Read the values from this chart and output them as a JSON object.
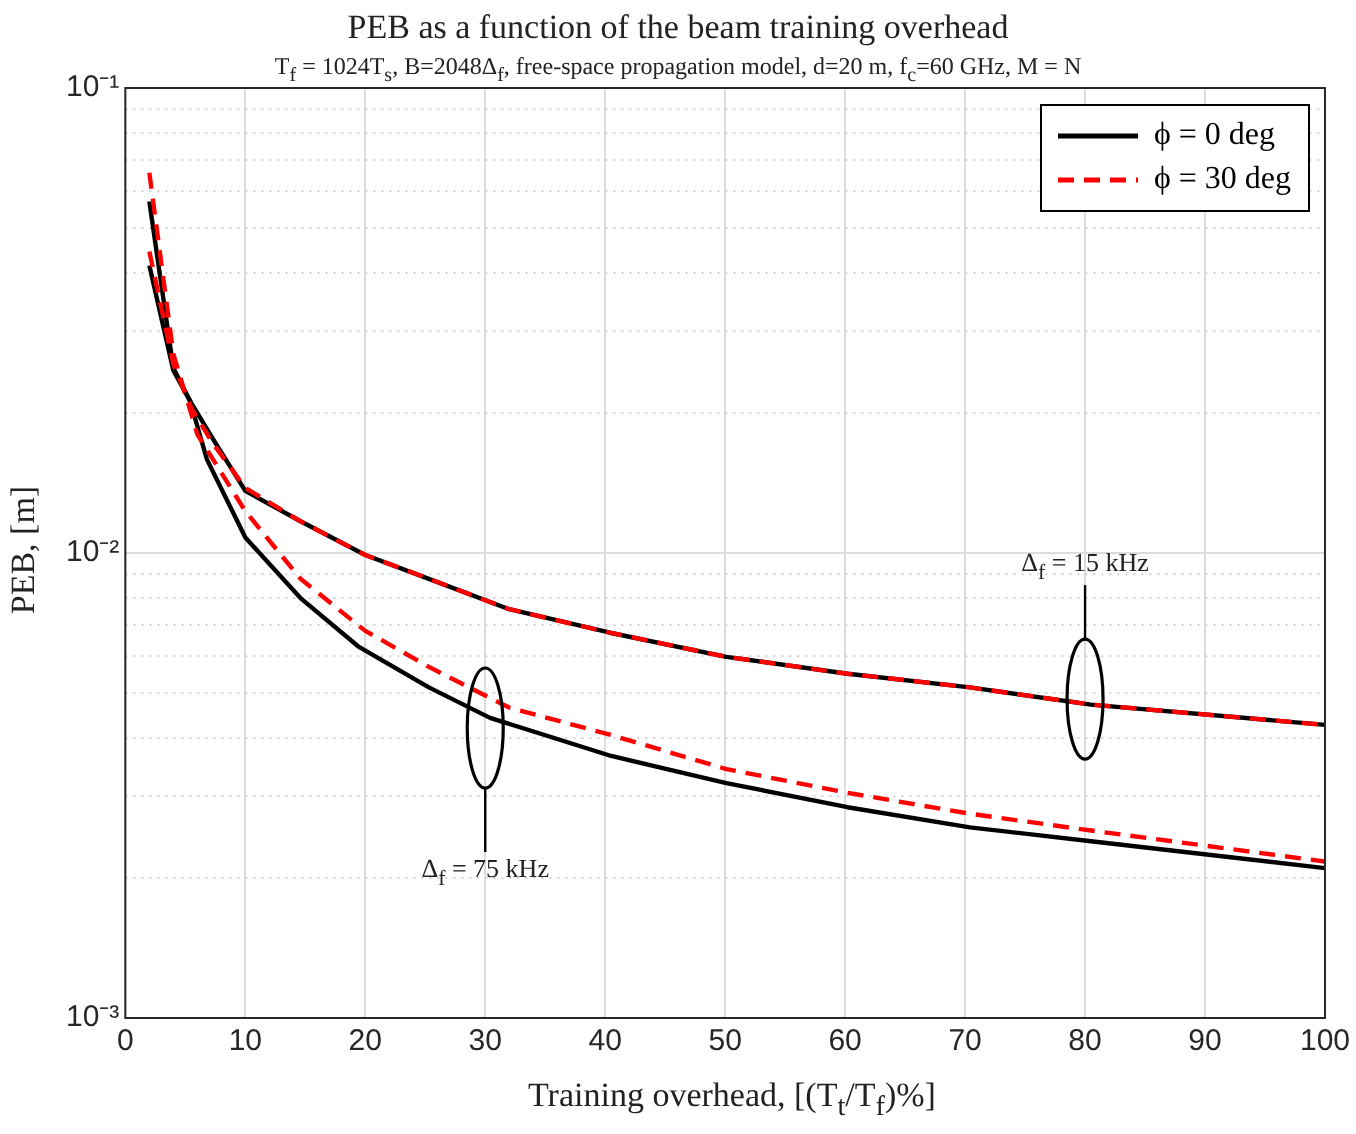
{
  "chart_data": {
    "type": "line",
    "title": "PEB as a function of the beam training overhead",
    "subtitle": "T$_{f}$ = 1024T$_{s}$, B=2048Δ$_{f}$, free-space propagation model, d=20 m, f$_{c}$=60 GHz, M = N",
    "xlabel": "Training overhead, [(T$_{t}$/T$_{f}$)%]",
    "ylabel": "PEB, [m]",
    "log": "y",
    "grid": true,
    "legend": "top right",
    "marker": "none",
    "xlim": [
      0,
      100
    ],
    "xticks": [
      0,
      10,
      20,
      30,
      40,
      50,
      60,
      70,
      80,
      90,
      100
    ],
    "ylim": [
      0.001,
      0.1
    ],
    "yticks": [
      {
        "value": 0.001,
        "label": "10⁻³"
      },
      {
        "value": 0.01,
        "label": "10⁻²"
      },
      {
        "value": 0.1,
        "label": "10⁻¹"
      }
    ],
    "series": [
      {
        "name": "ϕ = 0 deg",
        "color": "#000000",
        "line_style": "solid",
        "x": [
          2,
          4,
          5.4,
          6.8,
          10,
          14.6,
          19.4,
          25.3,
          30.4,
          40.5,
          50.1,
          60.2,
          70.4,
          80.5,
          100
        ],
        "values": [
          0.057,
          0.025,
          0.0212,
          0.0159,
          0.0108,
          0.008,
          0.0063,
          0.00514,
          0.00442,
          0.00366,
          0.0032,
          0.00284,
          0.00257,
          0.0024,
          0.0021
        ]
      },
      {
        "name": "ϕ = 30 deg",
        "color": "#ff0000",
        "line_style": "dashed",
        "x": [
          2,
          4,
          6,
          10,
          14.6,
          20,
          25.3,
          32,
          40.5,
          50.1,
          60.2,
          70.4,
          80.5,
          100
        ],
        "values": [
          0.0657,
          0.0268,
          0.018,
          0.0123,
          0.0088,
          0.0068,
          0.00569,
          0.00465,
          0.00406,
          0.00343,
          0.00305,
          0.00275,
          0.00253,
          0.00217
        ]
      },
      {
        "color": "#000000",
        "line_style": "solid",
        "x": [
          2,
          4,
          5.5,
          7.3,
          10,
          14.6,
          20,
          25.3,
          32,
          40.5,
          50.1,
          60.2,
          70.4,
          80.5,
          100
        ],
        "values": [
          0.0415,
          0.0247,
          0.021,
          0.0176,
          0.0136,
          0.0117,
          0.0099,
          0.0088,
          0.00757,
          0.00673,
          0.00598,
          0.0055,
          0.00514,
          0.00472,
          0.00427
        ]
      },
      {
        "color": "#ff0000",
        "line_style": "dashed",
        "x": [
          2,
          4,
          5.5,
          7.3,
          10,
          14.6,
          20,
          25.3,
          32,
          40.5,
          50.1,
          60.2,
          70.4,
          80.5,
          100
        ],
        "values": [
          0.0445,
          0.0255,
          0.0205,
          0.0172,
          0.0138,
          0.0117,
          0.0099,
          0.0088,
          0.00757,
          0.00673,
          0.00598,
          0.0055,
          0.00514,
          0.00472,
          0.00427
        ]
      }
    ],
    "annotations": [
      "Δ$_{f}$ = 15 kHz",
      "Δ$_{f}$ = 75 kHz"
    ]
  }
}
